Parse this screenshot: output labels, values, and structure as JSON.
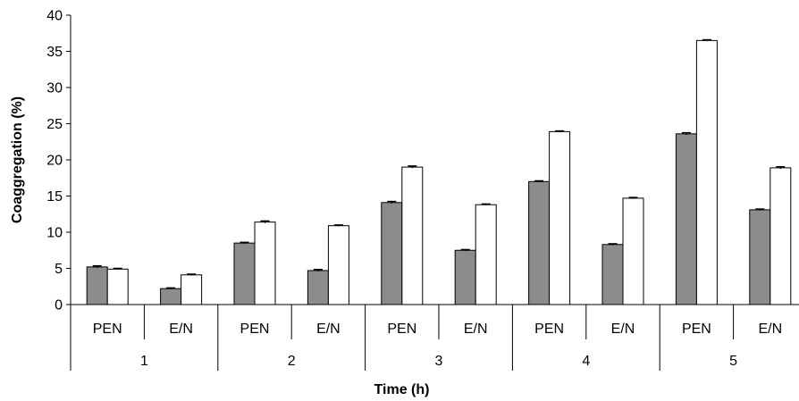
{
  "chart_data": {
    "type": "bar",
    "title": "",
    "xlabel": "Time (h)",
    "ylabel": "Coaggregation (%)",
    "ylim": [
      0,
      40
    ],
    "yticks": [
      0,
      5,
      10,
      15,
      20,
      25,
      30,
      35,
      40
    ],
    "grid": false,
    "legend": "none",
    "groups": [
      {
        "label": "1",
        "categories": [
          "PEN",
          "E/N"
        ]
      },
      {
        "label": "2",
        "categories": [
          "PEN",
          "E/N"
        ]
      },
      {
        "label": "3",
        "categories": [
          "PEN",
          "E/N"
        ]
      },
      {
        "label": "4",
        "categories": [
          "PEN",
          "E/N"
        ]
      },
      {
        "label": "5",
        "categories": [
          "PEN",
          "E/N"
        ]
      }
    ],
    "series": [
      {
        "color": "#8c8c8c",
        "values": [
          5.2,
          2.2,
          8.5,
          4.7,
          14.1,
          7.5,
          17.0,
          8.3,
          23.6,
          13.1
        ],
        "error": [
          0.15,
          0.1,
          0.1,
          0.15,
          0.15,
          0.1,
          0.1,
          0.1,
          0.15,
          0.1
        ]
      },
      {
        "color": "#ffffff",
        "values": [
          4.9,
          4.1,
          11.4,
          10.9,
          19.0,
          13.8,
          23.9,
          14.7,
          36.5,
          18.9
        ],
        "error": [
          0.1,
          0.1,
          0.15,
          0.1,
          0.15,
          0.1,
          0.1,
          0.1,
          0.1,
          0.15
        ]
      }
    ]
  }
}
